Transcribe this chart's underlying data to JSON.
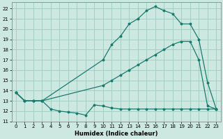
{
  "xlabel": "Humidex (Indice chaleur)",
  "bg_color": "#cce8e0",
  "grid_color": "#99ccc0",
  "line_color": "#1a7a6e",
  "xlim": [
    -0.5,
    23.5
  ],
  "ylim": [
    11,
    22.6
  ],
  "yticks": [
    11,
    12,
    13,
    14,
    15,
    16,
    17,
    18,
    19,
    20,
    21,
    22
  ],
  "xticks": [
    0,
    1,
    2,
    3,
    4,
    5,
    6,
    7,
    8,
    9,
    10,
    11,
    12,
    13,
    14,
    15,
    16,
    17,
    18,
    19,
    20,
    21,
    22,
    23
  ],
  "line1_x": [
    0,
    1,
    2,
    3,
    4,
    5,
    6,
    7,
    8,
    9,
    10,
    11,
    12,
    13,
    14,
    15,
    16,
    17,
    18,
    19,
    20,
    21,
    22,
    23
  ],
  "line1_y": [
    13.8,
    13.0,
    13.0,
    13.0,
    12.2,
    12.0,
    11.9,
    11.8,
    11.6,
    12.6,
    12.5,
    12.3,
    12.2,
    12.2,
    12.2,
    12.2,
    12.2,
    12.2,
    12.2,
    12.2,
    12.2,
    12.2,
    12.2,
    12.2
  ],
  "line2_x": [
    0,
    1,
    2,
    3,
    10,
    11,
    12,
    13,
    14,
    15,
    16,
    17,
    18,
    19,
    20,
    21,
    22,
    23
  ],
  "line2_y": [
    13.8,
    13.0,
    13.0,
    13.0,
    17.0,
    18.5,
    19.3,
    20.5,
    21.0,
    21.8,
    22.2,
    21.8,
    21.5,
    20.5,
    20.5,
    19.0,
    14.8,
    12.2
  ],
  "line3_x": [
    0,
    1,
    2,
    3,
    10,
    11,
    12,
    13,
    14,
    15,
    16,
    17,
    18,
    19,
    20,
    21,
    22,
    23
  ],
  "line3_y": [
    13.8,
    13.0,
    13.0,
    13.0,
    14.5,
    15.0,
    15.5,
    16.0,
    16.5,
    17.0,
    17.5,
    18.0,
    18.5,
    18.8,
    18.8,
    17.0,
    12.5,
    12.2
  ]
}
